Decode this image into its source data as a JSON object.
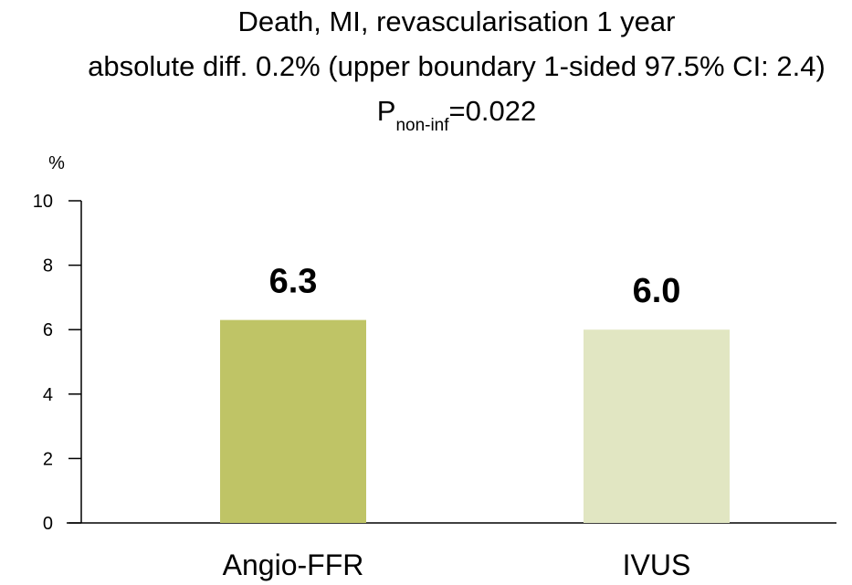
{
  "chart_data": {
    "type": "bar",
    "title_line1": "Death, MI, revascularisation 1 year",
    "title_line2": "absolute diff. 0.2% (upper boundary 1-sided 97.5% CI: 2.4)",
    "title_line3_prefix": "P",
    "title_line3_subscript": "non-inf",
    "title_line3_suffix": "=0.022",
    "ylabel": "%",
    "xlabel": "",
    "ylim": [
      0,
      10
    ],
    "yticks": [
      0,
      2,
      4,
      6,
      8,
      10
    ],
    "categories": [
      "Angio-FFR",
      "IVUS"
    ],
    "values": [
      6.3,
      6.0
    ],
    "value_labels": [
      "6.3",
      "6.0"
    ],
    "colors": [
      "#bfc466",
      "#e1e6c2"
    ],
    "grid": false,
    "legend": "none"
  }
}
